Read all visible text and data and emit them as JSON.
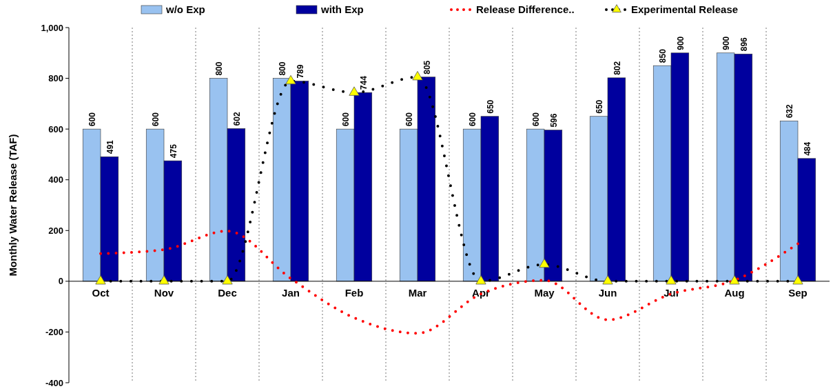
{
  "chart_data": {
    "type": "bar",
    "ylabel": "Monthly Water Release (TAF)",
    "categories": [
      "Oct",
      "Nov",
      "Dec",
      "Jan",
      "Feb",
      "Mar",
      "Apr",
      "May",
      "Jun",
      "Jul",
      "Aug",
      "Sep"
    ],
    "series": [
      {
        "name": "w/o Exp",
        "color": "#99c2f0",
        "values": [
          600,
          600,
          800,
          800,
          600,
          600,
          600,
          600,
          650,
          850,
          900,
          632
        ],
        "value_labels": [
          "600",
          "600",
          "800",
          "800",
          "600",
          "600",
          "600",
          "600",
          "650",
          "850",
          "900",
          "632"
        ]
      },
      {
        "name": "with Exp",
        "color": "#00009e",
        "values": [
          491,
          475,
          602,
          789,
          744,
          805,
          650,
          596,
          802,
          900,
          896,
          484
        ],
        "value_labels": [
          "491",
          "475",
          "602",
          "789",
          "744",
          "805",
          "650",
          "596",
          "802",
          "900",
          "896",
          "484"
        ]
      },
      {
        "name": "Release Difference..",
        "type": "line",
        "color": "#ff0000",
        "line_style": "dotted",
        "marker": "none",
        "values": [
          109,
          125,
          198,
          11,
          -144,
          -205,
          -50,
          4,
          -152,
          -50,
          4,
          148
        ]
      },
      {
        "name": "Experimental Release",
        "type": "line",
        "color": "#000000",
        "line_style": "dotted",
        "marker": "triangle",
        "values": [
          0,
          0,
          0,
          789,
          744,
          805,
          0,
          66,
          0,
          0,
          0,
          0
        ]
      }
    ],
    "ylim": [
      -400,
      1000
    ],
    "yticks": [
      {
        "value": -400,
        "label": "-400"
      },
      {
        "value": -200,
        "label": "-200"
      },
      0,
      200,
      400,
      600,
      800,
      {
        "value": 1000,
        "label": "1,000"
      }
    ],
    "grid": "x",
    "legend": "top"
  }
}
